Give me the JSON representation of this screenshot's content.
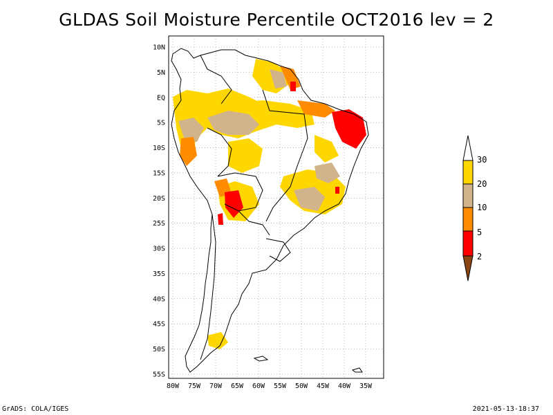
{
  "title": "GLDAS Soil Moisture Percentile OCT2016 lev = 2",
  "map": {
    "lat_ticks": [
      "10N",
      "5N",
      "EQ",
      "5S",
      "10S",
      "15S",
      "20S",
      "25S",
      "30S",
      "35S",
      "40S",
      "45S",
      "50S",
      "55S"
    ],
    "lon_ticks": [
      "80W",
      "75W",
      "70W",
      "65W",
      "60W",
      "55W",
      "50W",
      "45W",
      "40W",
      "35W"
    ],
    "lon_range": [
      -80,
      -35
    ],
    "lat_range": [
      -55,
      10
    ],
    "grid": "dotted"
  },
  "legend": {
    "labels": [
      "30",
      "20",
      "10",
      "5",
      "2"
    ],
    "colors": {
      "above_30": "#ffffff",
      "20_30": "#ffd700",
      "10_20": "#d2b48c",
      "5_10": "#ff8c00",
      "2_5": "#ff0000",
      "below_2": "#8b4513"
    }
  },
  "footer": {
    "left": "GrADS: COLA/IGES",
    "right": "2021-05-13-18:37"
  }
}
